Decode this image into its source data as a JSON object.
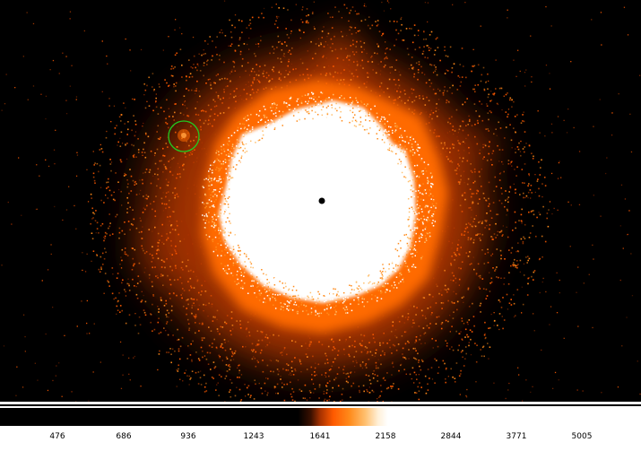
{
  "viewer": {
    "colormap": [
      "#000000",
      "#a83200",
      "#ff5a00",
      "#ff8a1a",
      "#ffc070",
      "#ffffff"
    ],
    "region_color": "#22cc22",
    "colorbar": {
      "ticks": [
        "476",
        "686",
        "936",
        "1243",
        "1641",
        "2158",
        "2844",
        "3771",
        "5005"
      ]
    }
  }
}
